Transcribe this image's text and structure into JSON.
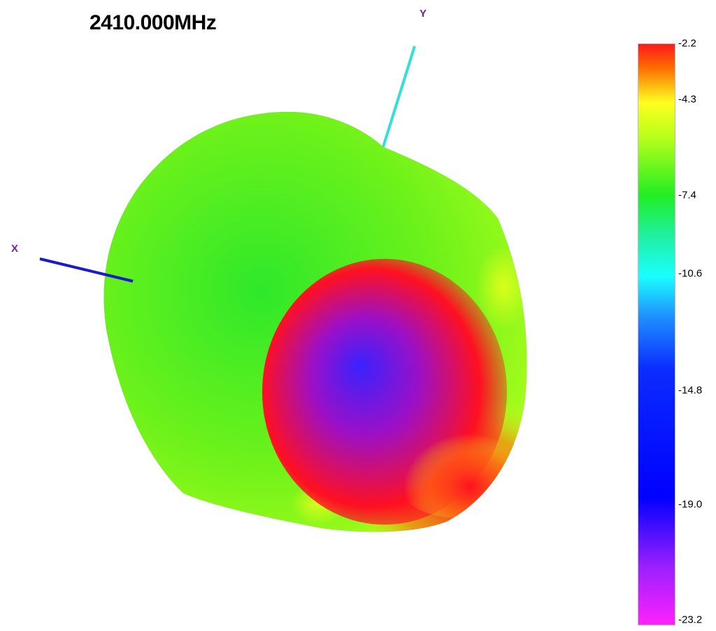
{
  "title": "2410.000MHz",
  "axes": {
    "x": {
      "label": "X",
      "color": "#1a1acc"
    },
    "y": {
      "label": "Y",
      "color": "#33e0d8"
    },
    "label_color": "#7a1fa2"
  },
  "colorbar": {
    "ticks": [
      "-2.2",
      "-4.3",
      "-7.4",
      "-10.6",
      "-14.8",
      "-19.0",
      "-23.2"
    ],
    "stops": [
      {
        "color": "#ff1a1a",
        "frac": 0.0
      },
      {
        "color": "#ff6a00",
        "frac": 0.04
      },
      {
        "color": "#ffff1f",
        "frac": 0.1
      },
      {
        "color": "#b8ff1a",
        "frac": 0.16
      },
      {
        "color": "#22ee22",
        "frac": 0.26
      },
      {
        "color": "#1ff0a0",
        "frac": 0.33
      },
      {
        "color": "#1affff",
        "frac": 0.4
      },
      {
        "color": "#1f8fff",
        "frac": 0.47
      },
      {
        "color": "#0a2cff",
        "frac": 0.56
      },
      {
        "color": "#0000ff",
        "frac": 0.78
      },
      {
        "color": "#9a1fff",
        "frac": 0.9
      },
      {
        "color": "#ff22ff",
        "frac": 1.0
      }
    ]
  },
  "pattern_colors": {
    "body": "#6ff21a",
    "body_dark": "#2ee82a",
    "body_light": "#b4ff1c",
    "hot": "#ff1020",
    "warm": "#ff7a10",
    "yellow": "#e8ff1c",
    "cold": "#3a22ff",
    "purple": "#9a10c8"
  }
}
